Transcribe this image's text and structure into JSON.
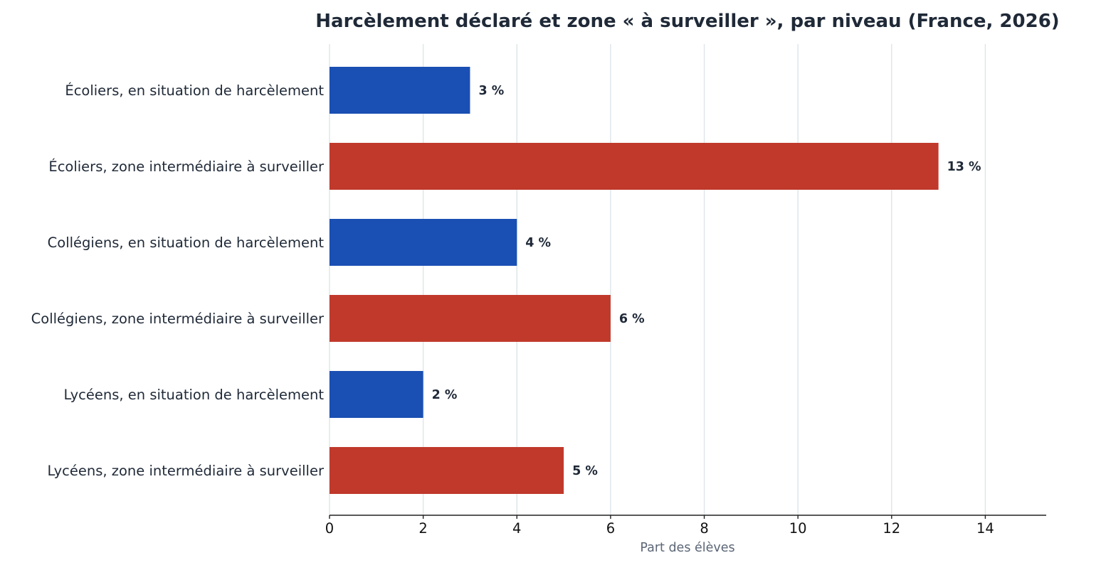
{
  "chart_data": {
    "type": "bar",
    "orientation": "horizontal",
    "title": "Harcèlement déclaré et zone « à surveiller », par niveau (France, 2026)",
    "xlabel": "Part des élèves",
    "ylabel": "",
    "xlim": [
      0,
      15.3
    ],
    "xticks": [
      0,
      2,
      4,
      6,
      8,
      10,
      12,
      14
    ],
    "grid": "vertical",
    "categories": [
      "Écoliers, en situation de harcèlement",
      "Écoliers, zone intermédiaire à surveiller",
      "Collégiens, en situation de harcèlement",
      "Collégiens, zone intermédiaire à surveiller",
      "Lycéens, en situation de harcèlement",
      "Lycéens, zone intermédiaire à surveiller"
    ],
    "values": [
      3,
      13,
      4,
      6,
      2,
      5
    ],
    "data_labels": [
      "3 %",
      "13 %",
      "4 %",
      "6 %",
      "2 %",
      "5 %"
    ],
    "bar_colors": [
      "#1a4fb3",
      "#c0392b",
      "#1a4fb3",
      "#c0392b",
      "#1a4fb3",
      "#c0392b"
    ]
  }
}
